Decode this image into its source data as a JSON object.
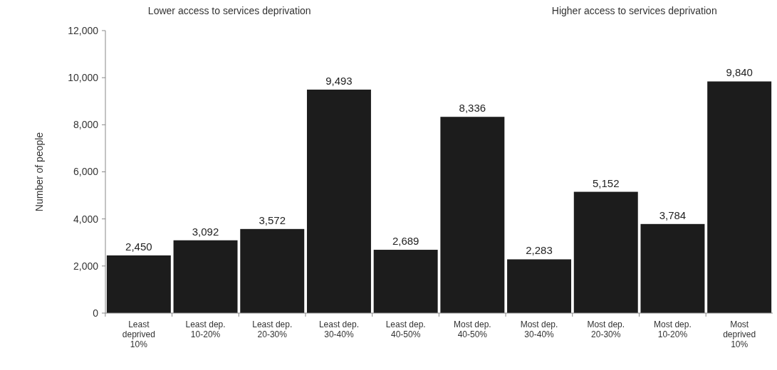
{
  "chart_data": {
    "type": "bar",
    "ylabel": "Number of people",
    "annotations": [
      "Lower access to services deprivation",
      "Higher access to services deprivation"
    ],
    "categories": [
      "Least deprived 10%",
      "Least dep. 10-20%",
      "Least dep. 20-30%",
      "Least dep. 30-40%",
      "Least dep. 40-50%",
      "Most dep. 40-50%",
      "Most dep. 30-40%",
      "Most dep. 20-30%",
      "Most dep. 10-20%",
      "Most deprived 10%"
    ],
    "values": [
      2450,
      3092,
      3572,
      9493,
      2689,
      8336,
      2283,
      5152,
      3784,
      9840
    ],
    "color": "#1c1c1c",
    "ylim": [
      0,
      12000
    ],
    "yticks": [
      {
        "value": 0,
        "label": "0"
      },
      {
        "value": 2000,
        "label": "2,000"
      },
      {
        "value": 4000,
        "label": "4,000"
      },
      {
        "value": 6000,
        "label": "6,000"
      },
      {
        "value": 8000,
        "label": "8,000"
      },
      {
        "value": 10000,
        "label": "10,000"
      },
      {
        "value": 12000,
        "label": "12,000"
      }
    ],
    "value_labels": [
      "2,450",
      "3,092",
      "3,572",
      "9,493",
      "2,689",
      "8,336",
      "2,283",
      "5,152",
      "3,784",
      "9,840"
    ],
    "grid": false
  }
}
